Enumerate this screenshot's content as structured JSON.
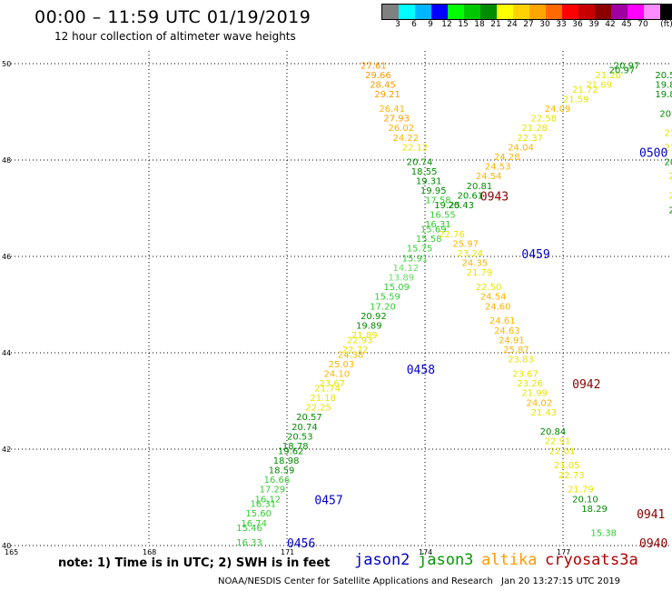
{
  "header": {
    "title": "00:00 – 11:59 UTC 01/19/2019",
    "subtitle": "12 hour collection of altimeter wave heights"
  },
  "colorbar": {
    "colors": [
      "#808080",
      "#00ffff",
      "#00b4ff",
      "#0000ff",
      "#00ff00",
      "#00c800",
      "#008c00",
      "#ffff00",
      "#ffd200",
      "#ffa500",
      "#ff6a00",
      "#ff0000",
      "#c80000",
      "#8b0000",
      "#a000a0",
      "#ff00ff",
      "#ff8cff",
      "#000000"
    ],
    "labels": [
      "3",
      "6",
      "9",
      "12",
      "15",
      "18",
      "21",
      "24",
      "27",
      "30",
      "33",
      "36",
      "39",
      "42",
      "45",
      "70",
      "(ft)"
    ]
  },
  "map": {
    "lat_ticks": [
      "40",
      "42",
      "44",
      "46",
      "48",
      "50"
    ],
    "lon_ticks": [
      "165",
      "168",
      "171",
      "174",
      "177"
    ],
    "lon_range": [
      165,
      179.4
    ],
    "lat_range": [
      40,
      50
    ]
  },
  "passes": [
    {
      "label": "0456",
      "mission": "jason2",
      "lon": 171.0,
      "lat": 40.0
    },
    {
      "label": "0457",
      "mission": "jason2",
      "lon": 171.6,
      "lat": 40.9
    },
    {
      "label": "0458",
      "mission": "jason2",
      "lon": 173.6,
      "lat": 43.6
    },
    {
      "label": "0459",
      "mission": "jason2",
      "lon": 176.1,
      "lat": 46.0
    },
    {
      "label": "0500",
      "mission": "jason2",
      "lon": 178.9,
      "lat": 48.1
    },
    {
      "label": "0940",
      "mission": "cryosat",
      "lon": 178.9,
      "lat": 40.0
    },
    {
      "label": "0941",
      "mission": "cryosat",
      "lon": 178.6,
      "lat": 40.6
    },
    {
      "label": "0942",
      "mission": "cryosat",
      "lon": 177.2,
      "lat": 43.3
    },
    {
      "label": "0943",
      "mission": "cryosat",
      "lon": 175.2,
      "lat": 47.2
    }
  ],
  "tracks": [
    {
      "name": "ne",
      "points": [
        {
          "lon": 169.9,
          "lat": 40.0,
          "v": 16.33
        },
        {
          "lon": 169.9,
          "lat": 40.3,
          "v": 15.46
        },
        {
          "lon": 170.0,
          "lat": 40.4,
          "v": 16.74
        },
        {
          "lon": 170.1,
          "lat": 40.6,
          "v": 15.6
        },
        {
          "lon": 170.2,
          "lat": 40.8,
          "v": 16.31
        },
        {
          "lon": 170.3,
          "lat": 40.9,
          "v": 16.12
        },
        {
          "lon": 170.4,
          "lat": 41.1,
          "v": 17.29
        },
        {
          "lon": 170.5,
          "lat": 41.3,
          "v": 16.66
        },
        {
          "lon": 170.6,
          "lat": 41.5,
          "v": 18.59
        },
        {
          "lon": 170.7,
          "lat": 41.7,
          "v": 18.98
        },
        {
          "lon": 170.8,
          "lat": 41.9,
          "v": 19.62
        },
        {
          "lon": 170.9,
          "lat": 42.0,
          "v": 18.78
        },
        {
          "lon": 171.0,
          "lat": 42.2,
          "v": 20.53
        },
        {
          "lon": 171.1,
          "lat": 42.4,
          "v": 20.74
        },
        {
          "lon": 171.2,
          "lat": 42.6,
          "v": 20.57
        },
        {
          "lon": 171.4,
          "lat": 42.8,
          "v": 22.25
        },
        {
          "lon": 171.5,
          "lat": 43.0,
          "v": 21.18
        },
        {
          "lon": 171.6,
          "lat": 43.2,
          "v": 21.74
        },
        {
          "lon": 171.7,
          "lat": 43.3,
          "v": 23.67
        },
        {
          "lon": 171.8,
          "lat": 43.5,
          "v": 24.1
        },
        {
          "lon": 171.9,
          "lat": 43.7,
          "v": 25.03
        },
        {
          "lon": 172.1,
          "lat": 43.9,
          "v": 24.38
        },
        {
          "lon": 172.2,
          "lat": 44.0,
          "v": 22.72
        },
        {
          "lon": 172.3,
          "lat": 44.2,
          "v": 22.93
        },
        {
          "lon": 172.4,
          "lat": 44.3,
          "v": 21.89
        },
        {
          "lon": 172.5,
          "lat": 44.5,
          "v": 19.89
        },
        {
          "lon": 172.6,
          "lat": 44.7,
          "v": 20.92
        },
        {
          "lon": 172.8,
          "lat": 44.9,
          "v": 17.2
        },
        {
          "lon": 172.9,
          "lat": 45.1,
          "v": 15.59
        },
        {
          "lon": 173.1,
          "lat": 45.3,
          "v": 15.09
        },
        {
          "lon": 173.2,
          "lat": 45.5,
          "v": 13.89
        },
        {
          "lon": 173.3,
          "lat": 45.7,
          "v": 14.12
        },
        {
          "lon": 173.5,
          "lat": 45.9,
          "v": 15.91
        },
        {
          "lon": 173.6,
          "lat": 46.1,
          "v": 15.75
        },
        {
          "lon": 173.8,
          "lat": 46.3,
          "v": 15.58
        },
        {
          "lon": 173.9,
          "lat": 46.5,
          "v": 15.69
        },
        {
          "lon": 174.0,
          "lat": 46.6,
          "v": 16.31
        },
        {
          "lon": 174.1,
          "lat": 46.8,
          "v": 16.55
        },
        {
          "lon": 174.2,
          "lat": 47.0,
          "v": 19.25
        },
        {
          "lon": 174.5,
          "lat": 47.0,
          "v": 20.43
        },
        {
          "lon": 174.7,
          "lat": 47.2,
          "v": 20.61
        },
        {
          "lon": 174.9,
          "lat": 47.4,
          "v": 20.81
        },
        {
          "lon": 175.1,
          "lat": 47.6,
          "v": 24.54
        },
        {
          "lon": 175.3,
          "lat": 47.8,
          "v": 24.53
        },
        {
          "lon": 175.5,
          "lat": 48.0,
          "v": 24.28
        },
        {
          "lon": 175.8,
          "lat": 48.2,
          "v": 24.04
        },
        {
          "lon": 176.0,
          "lat": 48.4,
          "v": 22.37
        },
        {
          "lon": 176.1,
          "lat": 48.6,
          "v": 21.28
        },
        {
          "lon": 176.3,
          "lat": 48.8,
          "v": 22.58
        },
        {
          "lon": 176.6,
          "lat": 49.0,
          "v": 24.09
        },
        {
          "lon": 177.0,
          "lat": 49.2,
          "v": 21.59
        },
        {
          "lon": 177.2,
          "lat": 49.4,
          "v": 21.72
        },
        {
          "lon": 177.5,
          "lat": 49.5,
          "v": 21.69
        },
        {
          "lon": 177.7,
          "lat": 49.7,
          "v": 21.2
        },
        {
          "lon": 178.0,
          "lat": 49.8,
          "v": 20.97
        },
        {
          "lon": 178.1,
          "lat": 49.9,
          "v": 20.97
        }
      ]
    },
    {
      "name": "se",
      "points": [
        {
          "lon": 172.6,
          "lat": 49.9,
          "v": 27.61
        },
        {
          "lon": 172.7,
          "lat": 49.7,
          "v": 29.66
        },
        {
          "lon": 172.8,
          "lat": 49.5,
          "v": 28.45
        },
        {
          "lon": 172.9,
          "lat": 49.3,
          "v": 29.21
        },
        {
          "lon": 173.0,
          "lat": 49.0,
          "v": 26.41
        },
        {
          "lon": 173.1,
          "lat": 48.8,
          "v": 27.93
        },
        {
          "lon": 173.2,
          "lat": 48.6,
          "v": 26.02
        },
        {
          "lon": 173.3,
          "lat": 48.4,
          "v": 24.22
        },
        {
          "lon": 173.5,
          "lat": 48.2,
          "v": 22.12
        },
        {
          "lon": 173.6,
          "lat": 47.9,
          "v": 20.74
        },
        {
          "lon": 173.7,
          "lat": 47.7,
          "v": 18.55
        },
        {
          "lon": 173.8,
          "lat": 47.5,
          "v": 19.31
        },
        {
          "lon": 173.9,
          "lat": 47.3,
          "v": 19.95
        },
        {
          "lon": 174.0,
          "lat": 47.1,
          "v": 17.58
        },
        {
          "lon": 174.3,
          "lat": 46.4,
          "v": 22.76
        },
        {
          "lon": 174.6,
          "lat": 46.2,
          "v": 25.97
        },
        {
          "lon": 174.7,
          "lat": 46.0,
          "v": 23.24
        },
        {
          "lon": 174.8,
          "lat": 45.8,
          "v": 24.35
        },
        {
          "lon": 174.9,
          "lat": 45.6,
          "v": 21.79
        },
        {
          "lon": 175.1,
          "lat": 45.3,
          "v": 22.5
        },
        {
          "lon": 175.2,
          "lat": 45.1,
          "v": 24.54
        },
        {
          "lon": 175.3,
          "lat": 44.9,
          "v": 24.6
        },
        {
          "lon": 175.4,
          "lat": 44.6,
          "v": 24.61
        },
        {
          "lon": 175.5,
          "lat": 44.4,
          "v": 24.63
        },
        {
          "lon": 175.6,
          "lat": 44.2,
          "v": 24.91
        },
        {
          "lon": 175.7,
          "lat": 44.0,
          "v": 25.87
        },
        {
          "lon": 175.8,
          "lat": 43.8,
          "v": 23.83
        },
        {
          "lon": 175.9,
          "lat": 43.5,
          "v": 23.67
        },
        {
          "lon": 176.0,
          "lat": 43.3,
          "v": 23.26
        },
        {
          "lon": 176.1,
          "lat": 43.1,
          "v": 21.99
        },
        {
          "lon": 176.2,
          "lat": 42.9,
          "v": 24.02
        },
        {
          "lon": 176.3,
          "lat": 42.7,
          "v": 21.43
        },
        {
          "lon": 176.5,
          "lat": 42.3,
          "v": 20.84
        },
        {
          "lon": 176.6,
          "lat": 42.1,
          "v": 22.91
        },
        {
          "lon": 176.7,
          "lat": 41.9,
          "v": 22.01
        },
        {
          "lon": 176.8,
          "lat": 41.6,
          "v": 21.05
        },
        {
          "lon": 176.9,
          "lat": 41.4,
          "v": 22.73
        },
        {
          "lon": 177.1,
          "lat": 41.1,
          "v": 21.79
        },
        {
          "lon": 177.2,
          "lat": 40.9,
          "v": 20.1
        },
        {
          "lon": 177.4,
          "lat": 40.7,
          "v": 18.29
        },
        {
          "lon": 177.6,
          "lat": 40.2,
          "v": 15.38
        }
      ]
    },
    {
      "name": "east-edge",
      "points": [
        {
          "lon": 179.0,
          "lat": 49.7,
          "v": 20.55
        },
        {
          "lon": 179.0,
          "lat": 49.5,
          "v": 19.81
        },
        {
          "lon": 179.0,
          "lat": 49.3,
          "v": 19.81
        },
        {
          "lon": 179.1,
          "lat": 48.9,
          "v": 20.38
        },
        {
          "lon": 179.2,
          "lat": 48.5,
          "v": 21.7
        },
        {
          "lon": 179.2,
          "lat": 48.2,
          "v": 21.1
        },
        {
          "lon": 179.2,
          "lat": 47.9,
          "v": 20.6
        },
        {
          "lon": 179.3,
          "lat": 47.6,
          "v": 21.4
        },
        {
          "lon": 179.3,
          "lat": 47.2,
          "v": 21.9
        },
        {
          "lon": 179.3,
          "lat": 46.9,
          "v": 20.2
        },
        {
          "lon": 179.4,
          "lat": 46.6,
          "v": 22.4
        }
      ]
    }
  ],
  "footer": {
    "note": "note: 1) Time is in UTC; 2) SWH is in feet",
    "missions": [
      {
        "name": "jason2",
        "color": "#0000cc"
      },
      {
        "name": "jason3",
        "color": "#009a00"
      },
      {
        "name": "altika",
        "color": "#ff9900"
      },
      {
        "name": "cryosat",
        "color": "#b00000"
      },
      {
        "name": "s3a",
        "color": "#b00000"
      }
    ],
    "credit": "NOAA/NESDIS Center for Satellite Applications and Research",
    "timestamp": "Jan 20 13:27:15 UTC 2019"
  }
}
